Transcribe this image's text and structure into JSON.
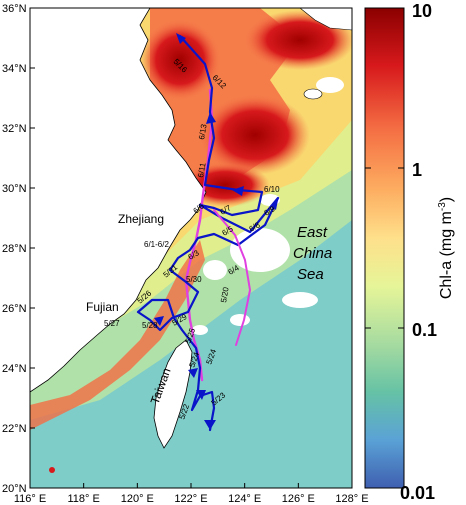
{
  "axes": {
    "x_ticks": [
      "116",
      "118",
      "120",
      "122",
      "124",
      "126",
      "128"
    ],
    "x_unit": "E",
    "y_ticks": [
      "20",
      "22",
      "24",
      "26",
      "28",
      "30",
      "32",
      "34",
      "36"
    ],
    "y_unit": "N",
    "degree_symbol": "°"
  },
  "colorbar": {
    "label_prefix": "Chl-a (mg m",
    "label_exp": "-3",
    "label_suffix": ")",
    "ticks": [
      "10",
      "1",
      "0.1",
      "0.01"
    ],
    "colors": [
      "#b40000",
      "#e41a1c",
      "#f46d43",
      "#fdae61",
      "#fee08b",
      "#e6f598",
      "#abdda4",
      "#66c2a5",
      "#6fa8dc",
      "#4a6fb5"
    ]
  },
  "map_labels": {
    "zhejiang": "Zhejiang",
    "fujian": "Fujian",
    "taiwan": "Taiwan",
    "sea_1": "East",
    "sea_2": "China",
    "sea_3": "Sea"
  },
  "cruise_dates": {
    "d516": "5/16",
    "d612": "6/12",
    "d613": "6/13",
    "d611": "6/11",
    "d610": "6/10",
    "d69": "6/9",
    "d67": "6/7",
    "d68": "6/8",
    "d66": "6/6",
    "d65": "6/5",
    "d63": "6/3",
    "d64": "6/4",
    "d61_62": "6/1-6/2",
    "d531": "5/31",
    "d530": "5/30",
    "d520": "5/20",
    "d526": "5/26",
    "d527": "5/27",
    "d528": "5/28",
    "d529": "5/29",
    "d525": "5/25",
    "d524": "5/24",
    "d524b": "5/24",
    "d523": "5/23",
    "d522": "5/22"
  },
  "colors": {
    "track_blue": "#0a14c8",
    "track_magenta": "#e040e0",
    "land": "#ffffff"
  }
}
